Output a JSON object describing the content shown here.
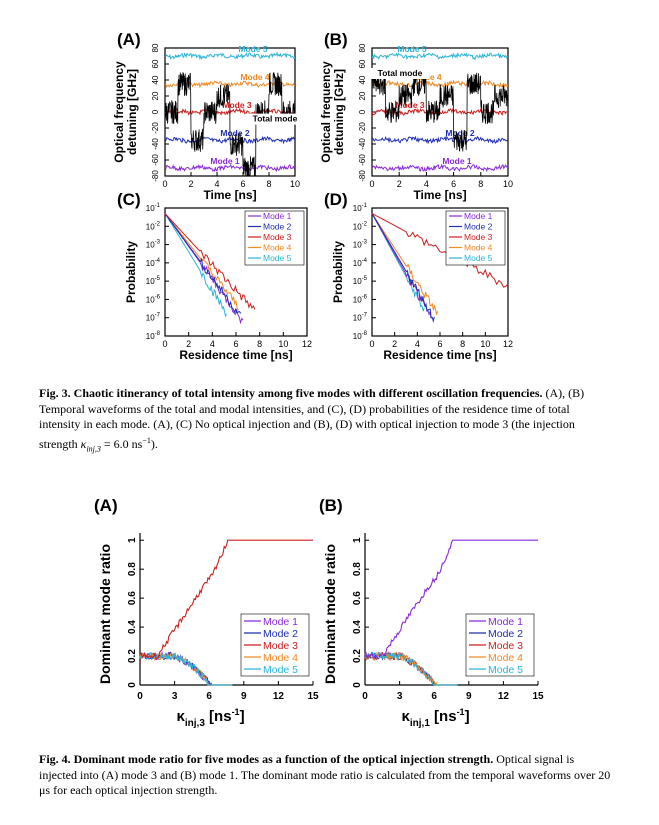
{
  "fig3": {
    "panels": [
      {
        "label": "(A)",
        "type": "time",
        "ylabel": "Optical frequency\ndetuning [GHz]",
        "xlabel": "Time [ns]",
        "xticks": [
          "0",
          "2",
          "4",
          "6",
          "8",
          "10"
        ],
        "yticks": [
          "80",
          "60",
          "40",
          "20",
          "0",
          "-20",
          "-40",
          "-60",
          "-80"
        ],
        "modes": [
          {
            "name": "Mode 5",
            "color": "#2bb5d9",
            "y": 70
          },
          {
            "name": "Mode 4",
            "color": "#f08a24",
            "y": 35
          },
          {
            "name": "Mode 3",
            "color": "#cc1f1f",
            "y": 0
          },
          {
            "name": "Mode 2",
            "color": "#1f2fb0",
            "y": -35
          },
          {
            "name": "Mode 1",
            "color": "#8a2bd9",
            "y": -70
          }
        ],
        "total_label": "Total mode"
      },
      {
        "label": "(B)",
        "type": "time",
        "ylabel": "Optical frequency\ndetuning [GHz]",
        "xlabel": "Time [ns]",
        "xticks": [
          "0",
          "2",
          "4",
          "6",
          "8",
          "10"
        ],
        "yticks": [
          "80",
          "60",
          "40",
          "20",
          "0",
          "-20",
          "-40",
          "-60",
          "-80"
        ],
        "modes": [
          {
            "name": "Mode 5",
            "color": "#2bb5d9",
            "y": 70
          },
          {
            "name": "Mode 4",
            "color": "#f08a24",
            "y": 35
          },
          {
            "name": "Mode 3",
            "color": "#cc1f1f",
            "y": 0
          },
          {
            "name": "Mode 2",
            "color": "#1f2fb0",
            "y": -35
          },
          {
            "name": "Mode 1",
            "color": "#8a2bd9",
            "y": -70
          }
        ],
        "total_label": "Total mode"
      },
      {
        "label": "(C)",
        "type": "prob",
        "ylabel": "Probability",
        "xlabel": "Residence time [ns]",
        "xticks": [
          "0",
          "2",
          "4",
          "6",
          "8",
          "10",
          "12"
        ],
        "yticks": [
          "10-1",
          "10-2",
          "10-3",
          "10-4",
          "10-5",
          "10-6",
          "10-7",
          "10-8"
        ],
        "legend": [
          "Mode 1",
          "Mode 2",
          "Mode 3",
          "Mode 4",
          "Mode 5"
        ]
      },
      {
        "label": "(D)",
        "type": "prob",
        "ylabel": "Probability",
        "xlabel": "Residence time [ns]",
        "xticks": [
          "0",
          "2",
          "4",
          "6",
          "8",
          "10",
          "12"
        ],
        "yticks": [
          "10-1",
          "10-2",
          "10-3",
          "10-4",
          "10-5",
          "10-6",
          "10-7",
          "10-8"
        ],
        "legend": [
          "Mode 1",
          "Mode 2",
          "Mode 3",
          "Mode 4",
          "Mode 5"
        ]
      }
    ],
    "caption_bold": "Fig. 3. Chaotic itinerancy of total intensity among five modes with different oscillation frequencies.",
    "caption_rest": " (A), (B) Temporal waveforms of the total and modal intensities, and (C), (D) probabilities of the residence time of total intensity in each mode. (A), (C) No optical injection and (B), (D) with optical injection to mode 3 (the injection strength ",
    "caption_kappa": "κ",
    "caption_kappa_sub": "inj,3",
    "caption_tail": " = 6.0 ns",
    "caption_sup": "−1",
    "caption_end": ")."
  },
  "fig4": {
    "panels": [
      {
        "label": "(A)",
        "ylabel": "Dominant mode ratio",
        "xlabel_main": "κ",
        "xlabel_sub": "inj,3",
        "xlabel_unit": "[ns",
        "xlabel_sup": "-1",
        "xlabel_close": "]",
        "xticks": [
          "0",
          "3",
          "6",
          "9",
          "12",
          "15"
        ],
        "yticks": [
          "0",
          "0.2",
          "0.4",
          "0.6",
          "0.8",
          "1"
        ],
        "legend": [
          "Mode 1",
          "Mode 2",
          "Mode 3",
          "Mode 4",
          "Mode 5"
        ],
        "rising": "Mode 3"
      },
      {
        "label": "(B)",
        "ylabel": "Dominant mode ratio",
        "xlabel_main": "κ",
        "xlabel_sub": "inj,1",
        "xlabel_unit": "[ns",
        "xlabel_sup": "-1",
        "xlabel_close": "]",
        "xticks": [
          "0",
          "3",
          "6",
          "9",
          "12",
          "15"
        ],
        "yticks": [
          "0",
          "0.2",
          "0.4",
          "0.6",
          "0.8",
          "1"
        ],
        "legend": [
          "Mode 1",
          "Mode 2",
          "Mode 3",
          "Mode 4",
          "Mode 5"
        ],
        "rising": "Mode 1"
      }
    ],
    "caption_bold": "Fig. 4. Dominant mode ratio for five modes as a function of the optical injection strength.",
    "caption_rest": " Optical signal is injected into (A) mode 3 and (B) mode 1. The dominant mode ratio is calculated from the temporal waveforms over 20 μs for each optical injection strength."
  },
  "colors": {
    "mode1": "#8a2bd9",
    "mode2": "#1f2fb0",
    "mode3": "#cc1f1f",
    "mode4": "#f08a24",
    "mode5": "#2bb5d9"
  }
}
